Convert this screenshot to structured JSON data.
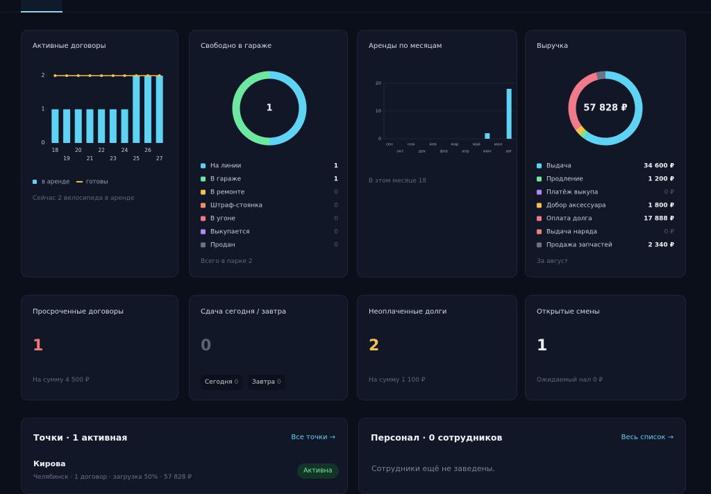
{
  "cards": [
    {
      "title": "Активные договоры",
      "chart": {
        "type": "bar-line",
        "categories": [
          "18",
          "19",
          "20",
          "21",
          "22",
          "23",
          "24",
          "25",
          "26",
          "27"
        ],
        "series": [
          {
            "name": "в аренде",
            "color": "#5fd3f3",
            "kind": "bar",
            "values": [
              1,
              1,
              1,
              1,
              1,
              1,
              1,
              2,
              2,
              2
            ]
          },
          {
            "name": "готовы",
            "color": "#f2c14e",
            "kind": "line",
            "values": [
              2,
              2,
              2,
              2,
              2,
              2,
              2,
              2,
              2,
              2
            ]
          }
        ],
        "ylim": [
          0,
          2
        ],
        "yticks": [
          0,
          1,
          2
        ]
      },
      "footer": "Сейчас 2 велосипеда в аренде"
    },
    {
      "title": "Свободно в гараже",
      "chart": {
        "type": "donut",
        "center_label": "1",
        "series": [
          {
            "name": "На линии",
            "color": "#5fd3f3",
            "value": 1
          },
          {
            "name": "В гараже",
            "color": "#6ee7a0",
            "value": 1
          },
          {
            "name": "В ремонте",
            "color": "#f2c14e",
            "value": 0
          },
          {
            "name": "Штраф-стоянка",
            "color": "#f0906a",
            "value": 0
          },
          {
            "name": "В угоне",
            "color": "#f07a8a",
            "value": 0
          },
          {
            "name": "Выкупается",
            "color": "#b388f0",
            "value": 0
          },
          {
            "name": "Продан",
            "color": "#6b7386",
            "value": 0
          }
        ]
      },
      "footer": "Всего в парке 2"
    },
    {
      "title": "Аренды по месяцам",
      "chart": {
        "type": "bar",
        "categories": [
          "сен",
          "окт",
          "ноя",
          "дек",
          "янв",
          "фев",
          "мар",
          "апр",
          "май",
          "июн",
          "июл",
          "авг"
        ],
        "values": [
          0,
          0,
          0,
          0,
          0,
          0,
          0,
          0,
          0,
          2,
          0,
          18
        ],
        "color": "#5fd3f3",
        "ylim": [
          0,
          20
        ],
        "yticks": [
          0,
          10,
          20
        ],
        "grid": true
      },
      "footer": "В этом месяце 18"
    },
    {
      "title": "Выручка",
      "chart": {
        "type": "donut",
        "center_label": "57 828 ₽",
        "series": [
          {
            "name": "Выдача",
            "color": "#5fd3f3",
            "value": 34600,
            "value_label": "34 600 ₽"
          },
          {
            "name": "Продление",
            "color": "#6ee7a0",
            "value": 1200,
            "value_label": "1 200 ₽"
          },
          {
            "name": "Платёж выкупа",
            "color": "#b388f0",
            "value": 0,
            "value_label": "0 ₽"
          },
          {
            "name": "Добор аксессуара",
            "color": "#f2c14e",
            "value": 1800,
            "value_label": "1 800 ₽"
          },
          {
            "name": "Оплата долга",
            "color": "#f07a8a",
            "value": 17888,
            "value_label": "17 888 ₽"
          },
          {
            "name": "Выдача наряда",
            "color": "#e4877a",
            "value": 0,
            "value_label": "0 ₽"
          },
          {
            "name": "Продажа запчастей",
            "color": "#6b7386",
            "value": 2340,
            "value_label": "2 340 ₽"
          }
        ]
      },
      "footer": "За август"
    }
  ],
  "stats": [
    {
      "title": "Просроченные договоры",
      "value": 1,
      "color": "#f07a7a",
      "footer": "На сумму 4 500 ₽"
    },
    {
      "title": "Сдача сегодня / завтра",
      "value": 0,
      "color": "#5a6276",
      "chips": [
        {
          "label": "Сегодня",
          "value": 0
        },
        {
          "label": "Завтра",
          "value": 0
        }
      ]
    },
    {
      "title": "Неоплаченные долги",
      "value": 2,
      "color": "#f2c14e",
      "footer": "На сумму 1 100 ₽"
    },
    {
      "title": "Открытые смены",
      "value": 1,
      "color": "#e8ecf4",
      "footer": "Ожидаемый нал 0 ₽"
    }
  ],
  "panels": [
    {
      "title": "Точки · 1 активная",
      "link": "Все точки →",
      "items": [
        {
          "name": "Кирова",
          "details": "Челябинск · 1 договор · загрузка 50% · 57 828 ₽",
          "status": "Активна"
        }
      ]
    },
    {
      "title": "Персонал · 0 сотрудников",
      "link": "Весь список →",
      "empty": "Сотрудники ещё не заведены."
    }
  ]
}
